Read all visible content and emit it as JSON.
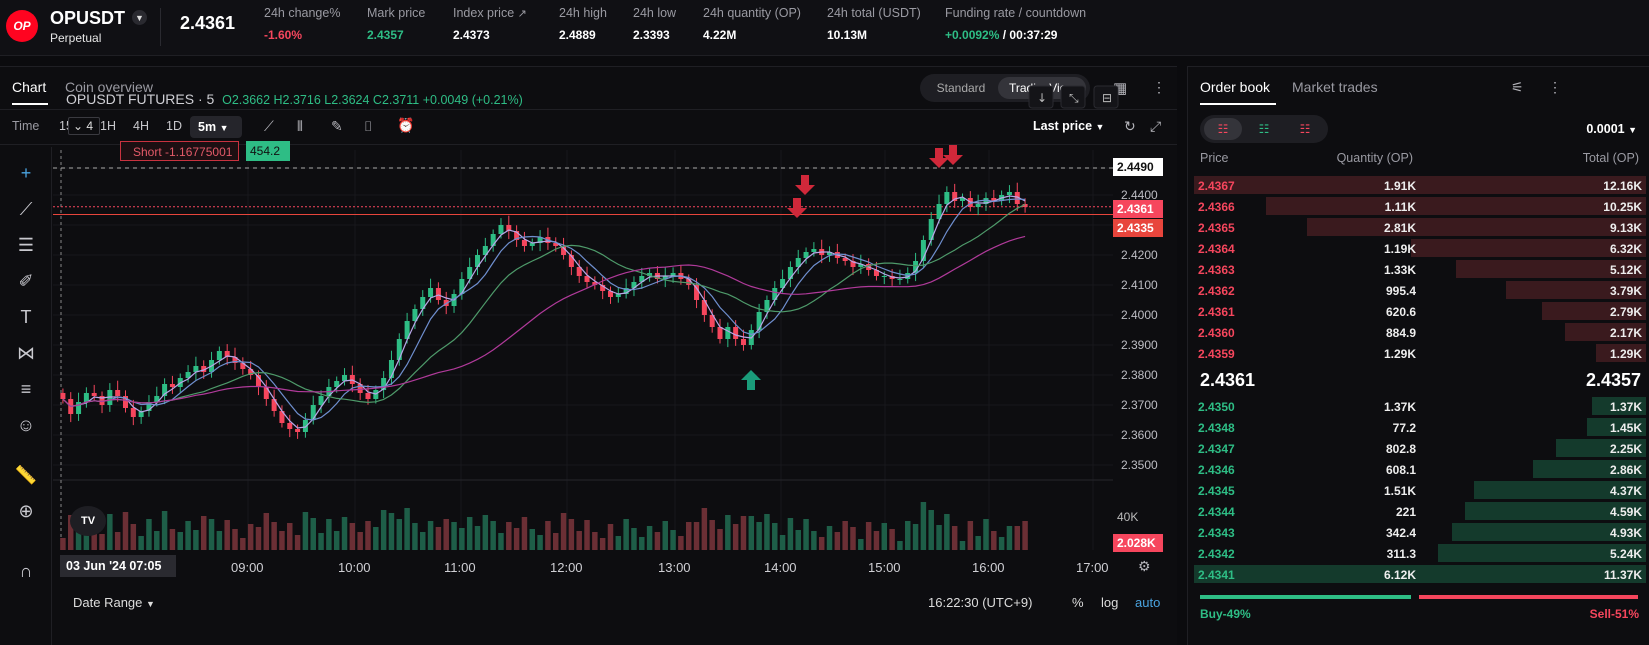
{
  "header": {
    "logo_text": "OP",
    "symbol": "OPUSDT",
    "contract_type": "Perpetual",
    "last_price": "2.4361",
    "stats": [
      {
        "label": "24h change%",
        "value": "-1.60%",
        "tone": "red"
      },
      {
        "label": "Mark price",
        "value": "2.4357",
        "tone": "green"
      },
      {
        "label": "Index price",
        "value": "2.4373",
        "tone": "white"
      },
      {
        "label": "24h high",
        "value": "2.4889",
        "tone": "white"
      },
      {
        "label": "24h low",
        "value": "2.3393",
        "tone": "white"
      },
      {
        "label": "24h quantity (OP)",
        "value": "4.22M",
        "tone": "white"
      },
      {
        "label": "24h total (USDT)",
        "value": "10.13M",
        "tone": "white"
      },
      {
        "label": "Funding rate / countdown",
        "value_rate": "+0.0092%",
        "value_sep": " / ",
        "value_count": "00:37:29"
      }
    ]
  },
  "chart_tabs": {
    "chart": "Chart",
    "overview": "Coin overview"
  },
  "chart_mode": {
    "standard": "Standard",
    "tradingview": "TradingView"
  },
  "toolbar": {
    "intervals": [
      "Time",
      "15m",
      "1H",
      "4H",
      "1D"
    ],
    "selected": "5m",
    "price_mode": "Last price"
  },
  "legend": {
    "title": "OPUSDT FUTURES · 5",
    "ohlc": "O2.3662  H2.3716  L2.3624  C2.3711  +0.0049 (+0.21%)",
    "qty": "4"
  },
  "position": {
    "side_label": "Short -1.16775001",
    "pnl": "454.2"
  },
  "price_tags": {
    "high_line": "2.4490",
    "last": "2.4361",
    "short_entry": "2.4335",
    "volume": "2.028K",
    "volume_axis": "40K"
  },
  "chart_data": {
    "type": "candlestick",
    "y_axis_ticks": [
      "2.4490",
      "2.4400",
      "2.4300",
      "2.4200",
      "2.4100",
      "2.4000",
      "2.3900",
      "2.3800",
      "2.3700",
      "2.3600",
      "2.3500"
    ],
    "ylim": [
      2.35,
      2.449
    ],
    "x_ticks": [
      "09:00",
      "10:00",
      "11:00",
      "12:00",
      "13:00",
      "14:00",
      "15:00",
      "16:00",
      "17:00"
    ],
    "start_label": "03 Jun '24   07:05",
    "close_series": [
      2.372,
      2.367,
      2.371,
      2.374,
      2.373,
      2.37,
      2.375,
      2.373,
      2.369,
      2.366,
      2.368,
      2.371,
      2.373,
      2.377,
      2.376,
      2.379,
      2.381,
      2.383,
      2.381,
      2.385,
      2.388,
      2.386,
      2.384,
      2.382,
      2.38,
      2.376,
      2.372,
      2.368,
      2.364,
      2.362,
      2.361,
      2.365,
      2.37,
      2.373,
      2.376,
      2.378,
      2.38,
      2.377,
      2.374,
      2.372,
      2.375,
      2.379,
      2.385,
      2.392,
      2.398,
      2.402,
      2.406,
      2.409,
      2.405,
      2.403,
      2.407,
      2.412,
      2.416,
      2.42,
      2.423,
      2.427,
      2.43,
      2.428,
      2.425,
      2.423,
      2.424,
      2.426,
      2.424,
      2.423,
      2.42,
      2.416,
      2.413,
      2.411,
      2.41,
      2.408,
      2.406,
      2.407,
      2.409,
      2.411,
      2.413,
      2.414,
      2.412,
      2.413,
      2.414,
      2.412,
      2.41,
      2.405,
      2.4,
      2.396,
      2.392,
      2.396,
      2.392,
      2.39,
      2.395,
      2.401,
      2.405,
      2.409,
      2.412,
      2.416,
      2.419,
      2.421,
      2.422,
      2.42,
      2.421,
      2.419,
      2.418,
      2.416,
      2.417,
      2.415,
      2.413,
      2.413,
      2.412,
      2.412,
      2.414,
      2.418,
      2.425,
      2.432,
      2.437,
      2.441,
      2.438,
      2.439,
      2.436,
      2.437,
      2.439,
      2.438,
      2.44,
      2.441,
      2.437,
      2.436
    ]
  },
  "bottom_bar": {
    "date_range": "Date Range",
    "clock": "16:22:30 (UTC+9)",
    "pct": "%",
    "log": "log",
    "auto": "auto"
  },
  "orderbook": {
    "tab_book": "Order book",
    "tab_trades": "Market trades",
    "precision": "0.0001",
    "col_price": "Price",
    "col_qty": "Quantity (OP)",
    "col_total": "Total (OP)",
    "asks": [
      {
        "price": "2.4367",
        "qty": "1.91K",
        "total": "12.16K",
        "depth": 1.0
      },
      {
        "price": "2.4366",
        "qty": "1.11K",
        "total": "10.25K",
        "depth": 0.84
      },
      {
        "price": "2.4365",
        "qty": "2.81K",
        "total": "9.13K",
        "depth": 0.75
      },
      {
        "price": "2.4364",
        "qty": "1.19K",
        "total": "6.32K",
        "depth": 0.52
      },
      {
        "price": "2.4363",
        "qty": "1.33K",
        "total": "5.12K",
        "depth": 0.42
      },
      {
        "price": "2.4362",
        "qty": "995.4",
        "total": "3.79K",
        "depth": 0.31
      },
      {
        "price": "2.4361",
        "qty": "620.6",
        "total": "2.79K",
        "depth": 0.23
      },
      {
        "price": "2.4360",
        "qty": "884.9",
        "total": "2.17K",
        "depth": 0.18
      },
      {
        "price": "2.4359",
        "qty": "1.29K",
        "total": "1.29K",
        "depth": 0.11
      }
    ],
    "mid_last": "2.4361",
    "mid_mark": "2.4357",
    "bids": [
      {
        "price": "2.4350",
        "qty": "1.37K",
        "total": "1.37K",
        "depth": 0.12
      },
      {
        "price": "2.4348",
        "qty": "77.2",
        "total": "1.45K",
        "depth": 0.13
      },
      {
        "price": "2.4347",
        "qty": "802.8",
        "total": "2.25K",
        "depth": 0.2
      },
      {
        "price": "2.4346",
        "qty": "608.1",
        "total": "2.86K",
        "depth": 0.25
      },
      {
        "price": "2.4345",
        "qty": "1.51K",
        "total": "4.37K",
        "depth": 0.38
      },
      {
        "price": "2.4344",
        "qty": "221",
        "total": "4.59K",
        "depth": 0.4
      },
      {
        "price": "2.4343",
        "qty": "342.4",
        "total": "4.93K",
        "depth": 0.43
      },
      {
        "price": "2.4342",
        "qty": "311.3",
        "total": "5.24K",
        "depth": 0.46
      },
      {
        "price": "2.4341",
        "qty": "6.12K",
        "total": "11.37K",
        "depth": 1.0
      }
    ],
    "buy_label": "Buy-49%",
    "sell_label": "Sell-51%",
    "buy_ratio": 0.49
  },
  "colors": {
    "up": "#2ebd85",
    "down": "#f6465d",
    "brand": "#ff0420"
  }
}
